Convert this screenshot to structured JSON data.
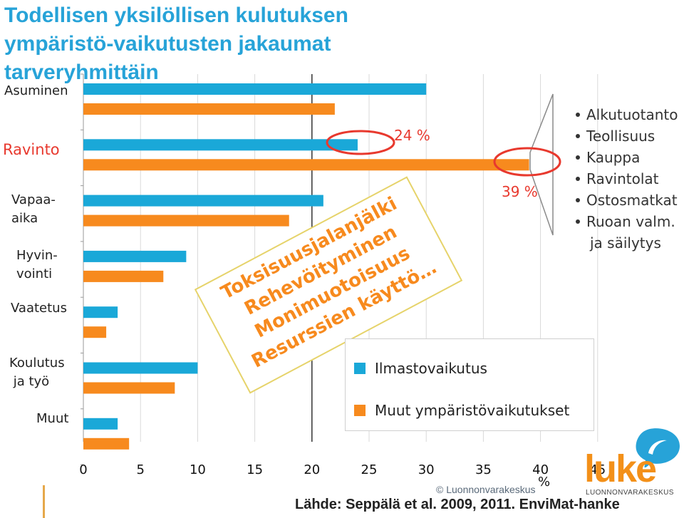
{
  "title": "Todellisen yksilöllisen kulutuksen ympäristö-vaikutusten jakaumat tarveryhmittäin",
  "categories": [
    {
      "label": "Asuminen",
      "highlight": false
    },
    {
      "label": "Ravinto",
      "highlight": true
    },
    {
      "label": "Vapaa-aika",
      "highlight": false
    },
    {
      "label": "Hyvin-vointi",
      "highlight": false
    },
    {
      "label": "Vaatetus",
      "highlight": false
    },
    {
      "label": "Koulutus ja työ",
      "highlight": false
    },
    {
      "label": "Muut",
      "highlight": false
    }
  ],
  "chart_data": {
    "type": "bar",
    "orientation": "horizontal",
    "categories": [
      "Asuminen",
      "Ravinto",
      "Vapaa-aika",
      "Hyvinvointi",
      "Vaatetus",
      "Koulutus ja työ",
      "Muut"
    ],
    "series": [
      {
        "name": "Ilmastovaikutus",
        "color": "#1aa8d8",
        "values": [
          30,
          24,
          21,
          9,
          3,
          10,
          3
        ]
      },
      {
        "name": "Muut ympäristövaikutukset",
        "color": "#f78a1e",
        "values": [
          22,
          39,
          18,
          7,
          2,
          8,
          4
        ]
      }
    ],
    "xlim": [
      0,
      45
    ],
    "xticks": [
      "0",
      "5",
      "10",
      "15",
      "20",
      "25",
      "30",
      "35",
      "40",
      "45"
    ],
    "xlabel": "%",
    "annotations": [
      "24 %",
      "39 %"
    ],
    "grid": "vertical"
  },
  "legend": {
    "items": [
      {
        "label": "Ilmastovaikutus",
        "color": "#1aa8d8"
      },
      {
        "label": "Muut ympäristövaikutukset",
        "color": "#f78a1e"
      }
    ]
  },
  "callouts": {
    "climate": "24 %",
    "other": "39 %"
  },
  "stamp": {
    "lines": [
      "Toksisuusjalanjälki",
      "Rehevöityminen",
      "Monimuotoisuus",
      "Resurssien käyttö…"
    ],
    "color": "#f78a1e",
    "border_color": "#e6d36a"
  },
  "food_chain": {
    "items": [
      "Alkutuotanto",
      "Teollisuus",
      "Kauppa",
      "Ravintolat",
      "Ostosmatkat",
      "Ruoan valm.",
      "ja säilytys"
    ]
  },
  "axis_unit": "%",
  "copyright": "© Luonnonvarakeskus",
  "source": "Lähde: Seppälä et al. 2009, 2011. EnviMat-hanke",
  "logo": {
    "word": "luke",
    "subtitle": "LUONNONVARAKESKUS",
    "bubble_color": "#27a3d8",
    "word_color": "#f39019"
  }
}
